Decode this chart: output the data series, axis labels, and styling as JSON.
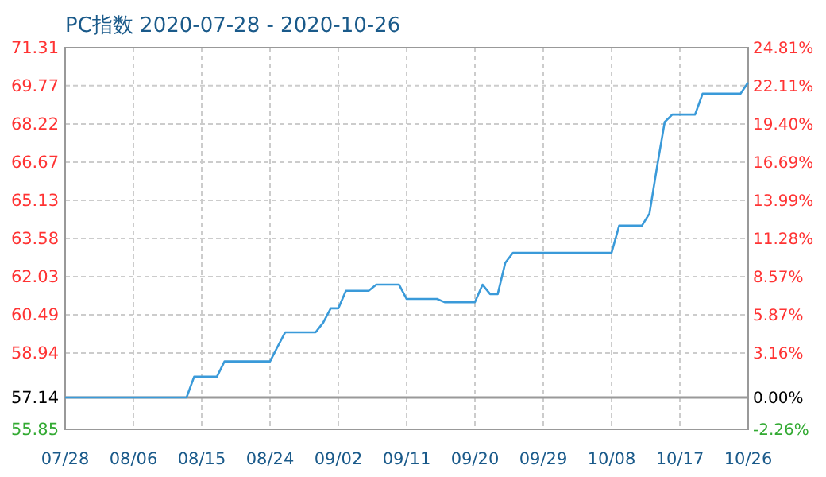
{
  "chart_data": {
    "type": "line",
    "title": "PC指数 2020-07-28 - 2020-10-26",
    "x": [
      "2020-07-28",
      "2020-08-13",
      "2020-08-14",
      "2020-08-17",
      "2020-08-18",
      "2020-08-24",
      "2020-08-25",
      "2020-08-26",
      "2020-08-30",
      "2020-08-31",
      "2020-09-01",
      "2020-09-02",
      "2020-09-03",
      "2020-09-06",
      "2020-09-07",
      "2020-09-10",
      "2020-09-11",
      "2020-09-15",
      "2020-09-16",
      "2020-09-20",
      "2020-09-21",
      "2020-09-22",
      "2020-09-23",
      "2020-09-24",
      "2020-09-25",
      "2020-10-08",
      "2020-10-09",
      "2020-10-12",
      "2020-10-13",
      "2020-10-14",
      "2020-10-15",
      "2020-10-16",
      "2020-10-19",
      "2020-10-20",
      "2020-10-25",
      "2020-10-26"
    ],
    "series": [
      {
        "color": "#3a9ad9",
        "values": [
          57.14,
          57.14,
          57.98,
          57.98,
          58.6,
          58.6,
          59.2,
          59.78,
          59.78,
          60.17,
          60.75,
          60.75,
          61.46,
          61.46,
          61.71,
          61.71,
          61.13,
          61.13,
          61.0,
          61.0,
          61.71,
          61.33,
          61.33,
          62.6,
          63.0,
          63.0,
          64.1,
          64.1,
          64.6,
          66.5,
          68.3,
          68.6,
          68.6,
          69.45,
          69.45,
          69.9
        ]
      }
    ],
    "xlim": [
      "2020-07-28",
      "2020-10-26"
    ],
    "xticks": [
      {
        "value": "2020-07-28",
        "label": "07/28"
      },
      {
        "value": "2020-08-06",
        "label": "08/06"
      },
      {
        "value": "2020-08-15",
        "label": "08/15"
      },
      {
        "value": "2020-08-24",
        "label": "08/24"
      },
      {
        "value": "2020-09-02",
        "label": "09/02"
      },
      {
        "value": "2020-09-11",
        "label": "09/11"
      },
      {
        "value": "2020-09-20",
        "label": "09/20"
      },
      {
        "value": "2020-09-29",
        "label": "09/29"
      },
      {
        "value": "2020-10-08",
        "label": "10/08"
      },
      {
        "value": "2020-10-17",
        "label": "10/17"
      },
      {
        "value": "2020-10-26",
        "label": "10/26"
      }
    ],
    "ylim": [
      55.85,
      71.31
    ],
    "yticks": [
      55.85,
      57.14,
      58.94,
      60.49,
      62.03,
      63.58,
      65.13,
      66.67,
      68.22,
      69.77,
      71.31
    ],
    "y2lim": [
      -2.26,
      24.81
    ],
    "y2ticks": [
      {
        "value": -2.26,
        "label": "-2.26%"
      },
      {
        "value": 0,
        "label": "0.00%"
      },
      {
        "value": 3.16,
        "label": "3.16%"
      },
      {
        "value": 5.87,
        "label": "5.87%"
      },
      {
        "value": 8.57,
        "label": "8.57%"
      },
      {
        "value": 11.28,
        "label": "11.28%"
      },
      {
        "value": 13.99,
        "label": "13.99%"
      },
      {
        "value": 16.69,
        "label": "16.69%"
      },
      {
        "value": 19.4,
        "label": "19.40%"
      },
      {
        "value": 22.11,
        "label": "22.11%"
      },
      {
        "value": 24.81,
        "label": "24.81%"
      }
    ],
    "ref_lines": [
      {
        "axis": "y",
        "value": 57.14,
        "color": "#999999"
      }
    ],
    "grid": true,
    "marker": "none",
    "line_style": "solid"
  }
}
